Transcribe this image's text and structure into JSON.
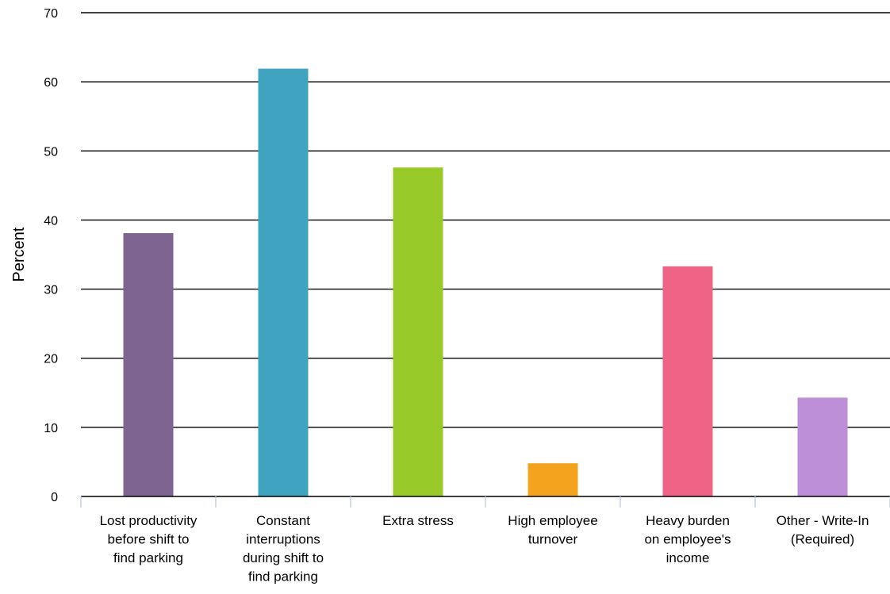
{
  "chart_data": {
    "type": "bar",
    "title": "",
    "xlabel": "",
    "ylabel": "Percent",
    "ylim": [
      0,
      70
    ],
    "yticks": [
      0,
      10,
      20,
      30,
      40,
      50,
      60,
      70
    ],
    "grid": true,
    "legend": "none",
    "categories": [
      [
        "Lost productivity",
        "before shift to",
        "find parking"
      ],
      [
        "Constant",
        "interruptions",
        "during shift to",
        "find parking"
      ],
      [
        "Extra stress"
      ],
      [
        "High employee",
        "turnover"
      ],
      [
        "Heavy burden",
        "on employee's",
        "income"
      ],
      [
        "Other - Write-In",
        "(Required)"
      ]
    ],
    "values": [
      38.1,
      61.9,
      47.6,
      4.8,
      33.3,
      14.3
    ],
    "colors": [
      "#7d6491",
      "#40a4c0",
      "#97c928",
      "#f4a31e",
      "#ef6486",
      "#bd8fd9"
    ]
  }
}
